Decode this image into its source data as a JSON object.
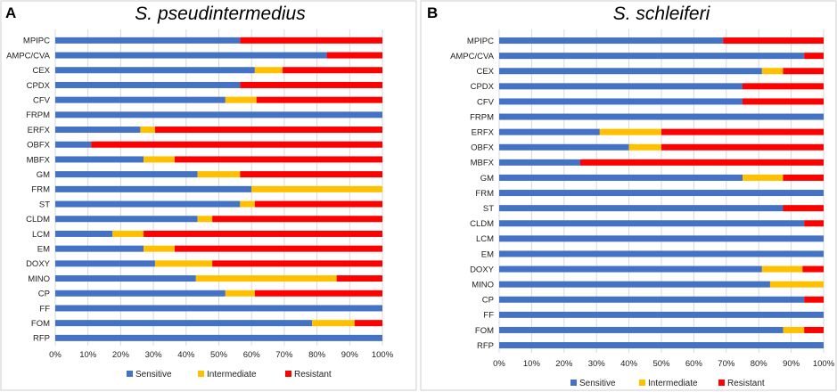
{
  "colors": {
    "sensitive": "#4472C4",
    "intermediate": "#FFC000",
    "resistant": "#FF0000"
  },
  "chart_data": [
    {
      "type": "bar",
      "orientation": "horizontal",
      "stacked": true,
      "panel_label": "A",
      "title": "S. pseudintermedius",
      "categories": [
        "MPIPC",
        "AMPC/CVA",
        "CEX",
        "CPDX",
        "CFV",
        "FRPM",
        "ERFX",
        "OBFX",
        "MBFX",
        "GM",
        "FRM",
        "ST",
        "CLDM",
        "LCM",
        "EM",
        "DOXY",
        "MINO",
        "CP",
        "FF",
        "FOM",
        "RFP"
      ],
      "series": [
        {
          "name": "Sensitive",
          "color_key": "sensitive",
          "values": [
            56.5,
            83,
            61,
            56.5,
            52,
            100,
            26,
            11,
            27,
            43.5,
            60,
            56.5,
            43.5,
            17.5,
            27,
            30.5,
            43,
            52,
            100,
            78.5,
            100
          ]
        },
        {
          "name": "Intermediate",
          "color_key": "intermediate",
          "values": [
            0,
            0,
            8.5,
            0,
            9.5,
            0,
            4.5,
            0,
            9.5,
            13,
            40,
            4.5,
            4.5,
            9.5,
            9.5,
            17.5,
            43,
            9,
            0,
            13,
            0
          ]
        },
        {
          "name": "Resistant",
          "color_key": "resistant",
          "values": [
            43.5,
            17,
            30.5,
            43.5,
            38.5,
            0,
            69.5,
            89,
            63.5,
            43.5,
            0,
            39,
            52,
            73,
            63.5,
            52,
            14,
            39,
            0,
            8.5,
            0
          ]
        }
      ],
      "xlim": [
        0,
        100
      ],
      "xticks": [
        "0%",
        "10%",
        "20%",
        "30%",
        "40%",
        "50%",
        "60%",
        "70%",
        "80%",
        "90%",
        "100%"
      ],
      "legend": [
        "Sensitive",
        "Intermediate",
        "Resistant"
      ],
      "legend_position": "bottom",
      "grid": true
    },
    {
      "type": "bar",
      "orientation": "horizontal",
      "stacked": true,
      "panel_label": "B",
      "title": "S. schleiferi",
      "categories": [
        "MPIPC",
        "AMPC/CVA",
        "CEX",
        "CPDX",
        "CFV",
        "FRPM",
        "ERFX",
        "OBFX",
        "MBFX",
        "GM",
        "FRM",
        "ST",
        "CLDM",
        "LCM",
        "EM",
        "DOXY",
        "MINO",
        "CP",
        "FF",
        "FOM",
        "RFP"
      ],
      "series": [
        {
          "name": "Sensitive",
          "color_key": "sensitive",
          "values": [
            69,
            94,
            81,
            75,
            75,
            100,
            31,
            40,
            25,
            75,
            100,
            87.5,
            94,
            100,
            100,
            81,
            83.5,
            94,
            100,
            87.5,
            100
          ]
        },
        {
          "name": "Intermediate",
          "color_key": "intermediate",
          "values": [
            0,
            0,
            6.5,
            0,
            0,
            0,
            19,
            10,
            0,
            12.5,
            0,
            0,
            0,
            0,
            0,
            12.5,
            16.5,
            0,
            0,
            6.5,
            0
          ]
        },
        {
          "name": "Resistant",
          "color_key": "resistant",
          "values": [
            31,
            6,
            12.5,
            25,
            25,
            0,
            50,
            50,
            75,
            12.5,
            0,
            12.5,
            6,
            0,
            0,
            6.5,
            0,
            6,
            0,
            6,
            0
          ]
        }
      ],
      "xlim": [
        0,
        100
      ],
      "xticks": [
        "0%",
        "10%",
        "20%",
        "30%",
        "40%",
        "50%",
        "60%",
        "70%",
        "80%",
        "90%",
        "100%"
      ],
      "legend": [
        "Sensitive",
        "Intermediate",
        "Resistant"
      ],
      "legend_position": "bottom",
      "grid": true
    }
  ]
}
